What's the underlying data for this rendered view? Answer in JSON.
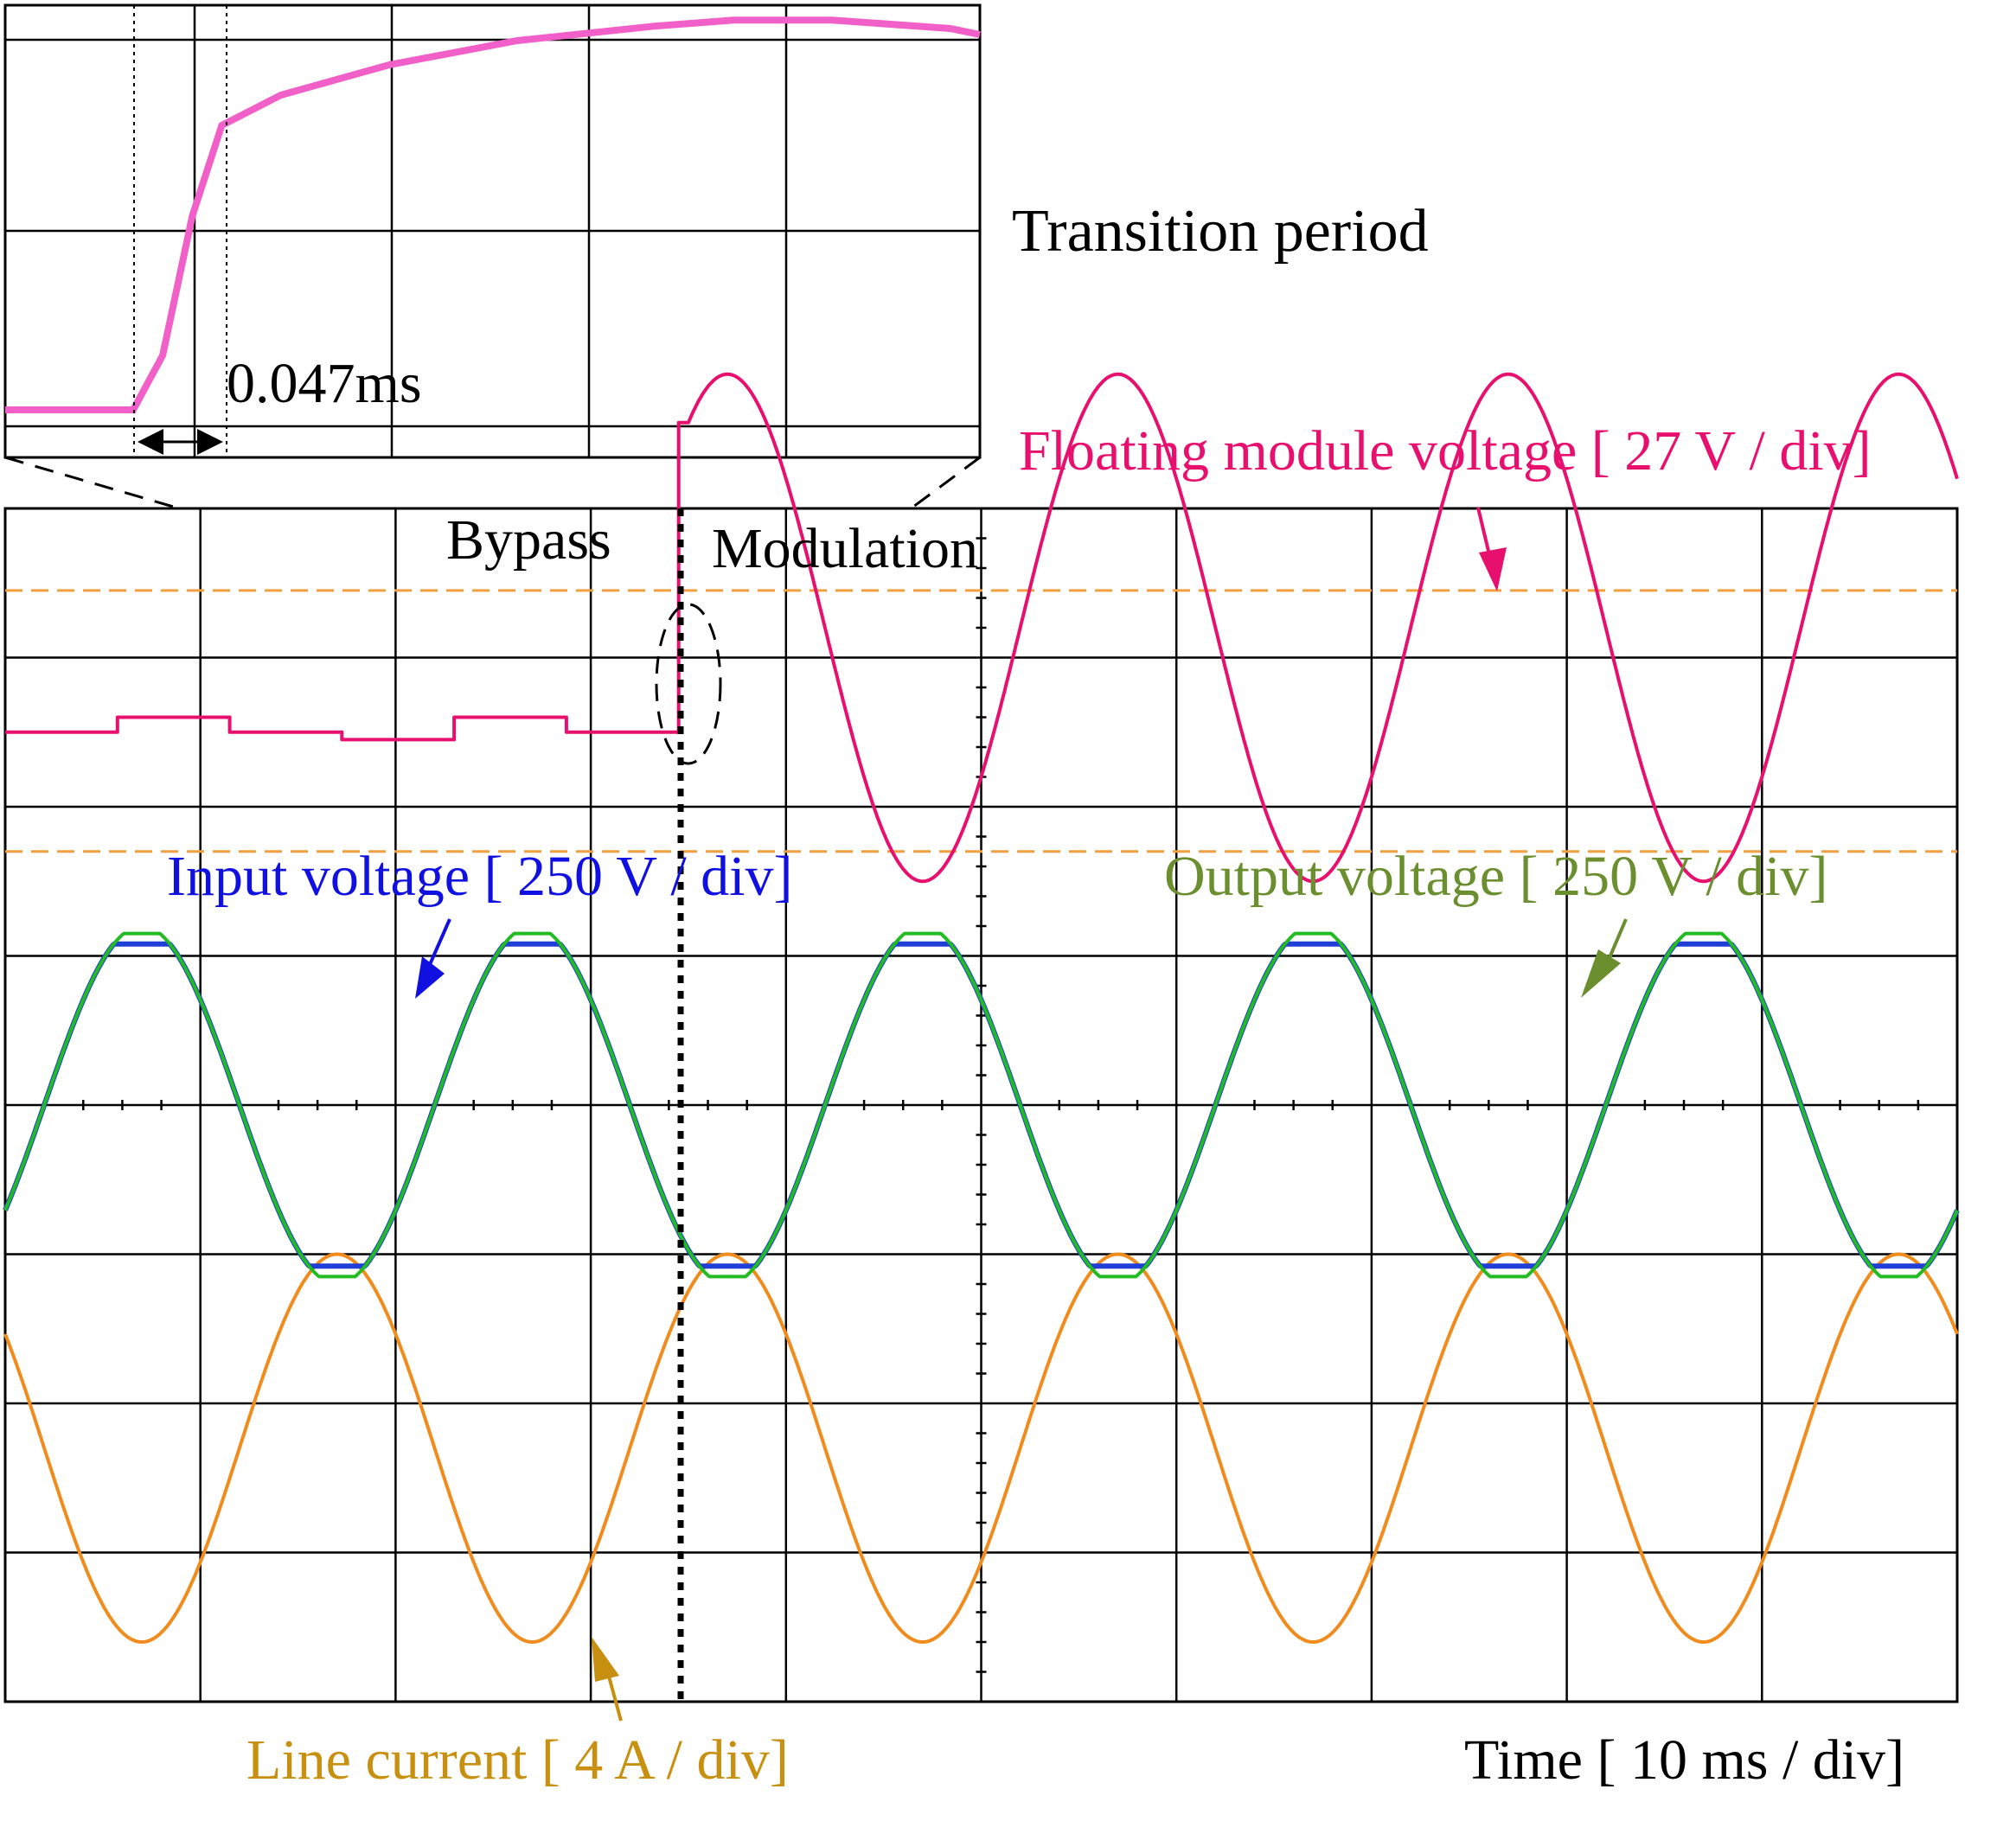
{
  "labels": {
    "inset_title": "Transition period",
    "inset_duration": "0.047ms",
    "bypass": "Bypass",
    "modulation": "Modulation",
    "floating": "Floating module voltage [ 27 V / div]",
    "input": "Input voltage [ 250 V / div]",
    "output": "Output voltage [ 250 V / div]",
    "current": "Line current [ 4 A / div]",
    "time": "Time [ 10 ms / div]"
  },
  "colors": {
    "floating": "#e8106e",
    "inset_trace": "#f060c8",
    "input": "#1f3fd6",
    "output": "#22bb22",
    "current": "#f08c1e",
    "bounds": "#f0a040",
    "floating_label": "#e8106e",
    "input_label": "#1010e0",
    "output_label": "#6b8e2f",
    "current_label": "#c89010",
    "grid": "#000000"
  },
  "chart_data": {
    "type": "line",
    "title": "",
    "x_unit": "div (10 ms / div)",
    "x_range": [
      0,
      10
    ],
    "y_range": [
      -4,
      4
    ],
    "grid": true,
    "divisions": {
      "x": 10,
      "y": 8
    },
    "transition_x": 3.45,
    "series": [
      {
        "name": "Floating module voltage [ 27 V / div]",
        "scale": "27 V / div",
        "bypass_levels_div": [
          2.5,
          2.6,
          2.5,
          2.45,
          2.6,
          2.5
        ],
        "modulation": {
          "offset_div": 3.2,
          "amplitude_div": 1.7,
          "period_div": 2.0,
          "peak_at_div": 3.7
        }
      },
      {
        "name": "Input voltage [ 250 V / div]",
        "scale": "250 V / div",
        "offset_div": 0,
        "amplitude_div": 1.2,
        "period_div": 2.0,
        "peak_at_div": 0.7,
        "flat_top_div": 1.08
      },
      {
        "name": "Output voltage [ 250 V / div]",
        "scale": "250 V / div",
        "offset_div": 0,
        "amplitude_div": 1.2,
        "period_div": 2.0,
        "peak_at_div": 0.7,
        "flat_top_div": 1.15
      },
      {
        "name": "Line current [ 4 A / div]",
        "scale": "4 A / div",
        "offset_div": -2.3,
        "amplitude_div": 1.3,
        "period_div": 2.0,
        "peak_at_div": 1.7
      }
    ],
    "reference_levels_div": [
      3.45,
      1.7
    ],
    "inset": {
      "title": "Transition period",
      "duration": "0.047ms",
      "trace": [
        [
          0,
          0.1
        ],
        [
          0.65,
          0.1
        ],
        [
          0.8,
          0.55
        ],
        [
          0.95,
          1.7
        ],
        [
          1.1,
          2.45
        ],
        [
          1.4,
          2.7
        ],
        [
          1.95,
          2.95
        ],
        [
          2.6,
          3.15
        ],
        [
          3.3,
          3.27
        ],
        [
          3.7,
          3.32
        ],
        [
          4.2,
          3.32
        ],
        [
          4.8,
          3.25
        ],
        [
          4.95,
          3.2
        ]
      ],
      "markers_x": [
        0.65,
        1.1
      ]
    }
  }
}
